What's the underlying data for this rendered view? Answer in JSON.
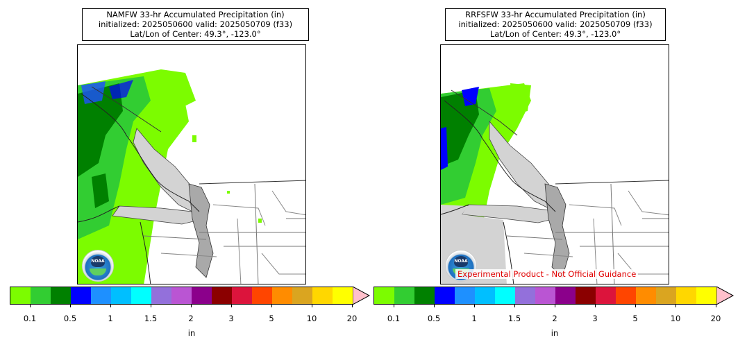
{
  "panels": [
    {
      "id": "left",
      "title_line1": "NAMFW 33-hr Accumulated Precipitation (in)",
      "title_line2": "initialized: 2025050600 valid: 2025050709 (f33)",
      "title_line3": "Lat/Lon of Center: 49.3°, -123.0°",
      "logo_text": "NOAA"
    },
    {
      "id": "right",
      "title_line1": "RRFSFW 33-hr Accumulated Precipitation (in)",
      "title_line2": "initialized: 2025050600 valid: 2025050709 (f33)",
      "title_line3": "Lat/Lon of Center: 49.3°, -123.0°",
      "logo_text": "NOAA",
      "disclaimer": "Experimental Product - Not Official Guidance"
    }
  ],
  "colorbar": {
    "unit_label": "in",
    "colors": [
      "#7cfc00",
      "#32cd32",
      "#008000",
      "#0000ff",
      "#1e90ff",
      "#00bfff",
      "#00ffff",
      "#9370db",
      "#ba55d3",
      "#8b008b",
      "#8b0000",
      "#dc143c",
      "#ff4500",
      "#ff8c00",
      "#daa520",
      "#ffd700",
      "#ffff00"
    ],
    "extend_color": "#ffc0cb",
    "tick_labels": [
      "0.1",
      "0.5",
      "1",
      "1.5",
      "2",
      "3",
      "5",
      "10",
      "20"
    ]
  }
}
